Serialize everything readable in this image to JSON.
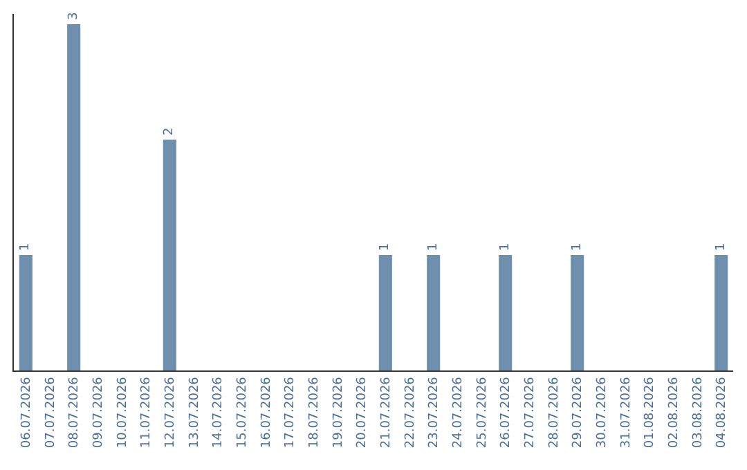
{
  "chart_data": {
    "type": "bar",
    "categories": [
      "06.07.2026",
      "07.07.2026",
      "08.07.2026",
      "09.07.2026",
      "10.07.2026",
      "11.07.2026",
      "12.07.2026",
      "13.07.2026",
      "14.07.2026",
      "15.07.2026",
      "16.07.2026",
      "17.07.2026",
      "18.07.2026",
      "19.07.2026",
      "20.07.2026",
      "21.07.2026",
      "22.07.2026",
      "23.07.2026",
      "24.07.2026",
      "25.07.2026",
      "26.07.2026",
      "27.07.2026",
      "28.07.2026",
      "29.07.2026",
      "30.07.2026",
      "31.07.2026",
      "01.08.2026",
      "02.08.2026",
      "03.08.2026",
      "04.08.2026"
    ],
    "values": [
      1,
      0,
      3,
      0,
      0,
      0,
      2,
      0,
      0,
      0,
      0,
      0,
      0,
      0,
      0,
      1,
      0,
      1,
      0,
      0,
      1,
      0,
      0,
      1,
      0,
      0,
      0,
      0,
      0,
      1
    ],
    "value_labels": [
      "1",
      null,
      "3",
      null,
      null,
      null,
      "2",
      null,
      null,
      null,
      null,
      null,
      null,
      null,
      null,
      "1",
      null,
      "1",
      null,
      null,
      "1",
      null,
      null,
      "1",
      null,
      null,
      null,
      null,
      null,
      "1"
    ],
    "color": "#6f8faf"
  }
}
